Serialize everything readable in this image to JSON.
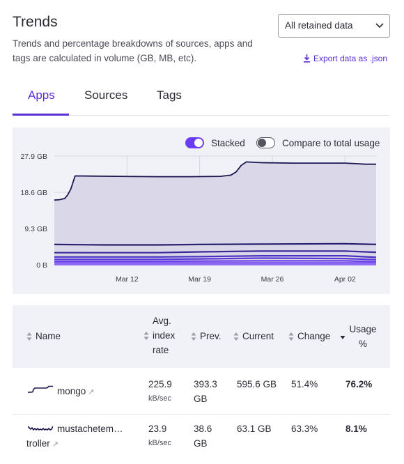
{
  "header": {
    "title": "Trends",
    "description": "Trends and percentage breakdowns of sources, apps and tags are calculated in volume (GB, MB, etc).",
    "range_select": "All retained data",
    "export_label": "Export data as .json"
  },
  "tabs": [
    {
      "label": "Apps",
      "active": true
    },
    {
      "label": "Sources",
      "active": false
    },
    {
      "label": "Tags",
      "active": false
    }
  ],
  "toggles": {
    "stacked_label": "Stacked",
    "stacked_on": true,
    "compare_label": "Compare to total usage",
    "compare_on": false
  },
  "chart_data": {
    "type": "area",
    "stacked": true,
    "y_tick_labels": [
      "27.9 GB",
      "18.6 GB",
      "9.3 GB",
      "0 B"
    ],
    "y_ticks": [
      27.9,
      18.6,
      9.3,
      0
    ],
    "ylim": [
      0,
      27.9
    ],
    "x_tick_labels": [
      "Mar 12",
      "Mar 19",
      "Mar 26",
      "Apr 02"
    ],
    "x_tick_days": [
      7,
      14,
      21,
      28
    ],
    "xlim_days": [
      0,
      31
    ],
    "grid": true,
    "series": [
      {
        "color": "#1b1750",
        "points": [
          [
            0,
            16.6
          ],
          [
            0.5,
            16.7
          ],
          [
            1,
            17.0
          ],
          [
            1.3,
            18.0
          ],
          [
            1.6,
            19.5
          ],
          [
            2,
            22.8
          ],
          [
            6,
            22.7
          ],
          [
            10,
            22.6
          ],
          [
            13,
            22.6
          ],
          [
            16,
            22.7
          ],
          [
            17,
            23.0
          ],
          [
            17.5,
            23.8
          ],
          [
            18,
            25.5
          ],
          [
            18.5,
            26.4
          ],
          [
            20,
            26.2
          ],
          [
            23,
            26.1
          ],
          [
            26,
            26.1
          ],
          [
            28,
            26.1
          ],
          [
            30,
            25.8
          ],
          [
            31,
            25.8
          ]
        ]
      },
      {
        "color": "#2a2070",
        "points": [
          [
            0,
            5.2
          ],
          [
            5,
            5.1
          ],
          [
            10,
            5.1
          ],
          [
            14,
            5.2
          ],
          [
            20,
            5.3
          ],
          [
            28,
            5.4
          ],
          [
            31,
            5.2
          ]
        ]
      },
      {
        "color": "#3a2a9a",
        "points": [
          [
            0,
            3.1
          ],
          [
            10,
            3.1
          ],
          [
            14,
            3.3
          ],
          [
            20,
            3.5
          ],
          [
            28,
            3.5
          ],
          [
            31,
            3.2
          ]
        ]
      },
      {
        "color": "#4a30c0",
        "points": [
          [
            0,
            2.0
          ],
          [
            10,
            2.0
          ],
          [
            14,
            2.1
          ],
          [
            20,
            2.3
          ],
          [
            28,
            2.3
          ],
          [
            31,
            1.9
          ]
        ]
      },
      {
        "color": "#5a38d8",
        "points": [
          [
            0,
            1.4
          ],
          [
            10,
            1.4
          ],
          [
            14,
            1.5
          ],
          [
            20,
            1.7
          ],
          [
            28,
            1.6
          ],
          [
            31,
            1.3
          ]
        ]
      },
      {
        "color": "#6a42e8",
        "points": [
          [
            0,
            0.9
          ],
          [
            10,
            0.9
          ],
          [
            20,
            1.0
          ],
          [
            28,
            1.0
          ],
          [
            31,
            0.8
          ]
        ]
      },
      {
        "color": "#7b55f0",
        "points": [
          [
            0,
            0.5
          ],
          [
            31,
            0.5
          ]
        ]
      },
      {
        "color": "#8e6cf5",
        "points": [
          [
            0,
            0.2
          ],
          [
            31,
            0.2
          ]
        ]
      }
    ]
  },
  "table": {
    "columns": [
      {
        "label": "Name"
      },
      {
        "label": "Avg. index rate"
      },
      {
        "label": "Prev."
      },
      {
        "label": "Current"
      },
      {
        "label": "Change"
      },
      {
        "label": "Usage %",
        "sorted": "desc"
      }
    ],
    "rows": [
      {
        "name": "mongo",
        "rate": "225.9",
        "rate_unit": "kB/sec",
        "prev": "393.3 GB",
        "current": "595.6 GB",
        "change": "51.4%",
        "usage": "76.2%"
      },
      {
        "name_line1": "mustachetem…",
        "name_line2": "troller",
        "rate": "23.9",
        "rate_unit": "kB/sec",
        "prev": "38.6 GB",
        "current": "63.1 GB",
        "change": "63.3%",
        "usage": "8.1%"
      }
    ]
  }
}
